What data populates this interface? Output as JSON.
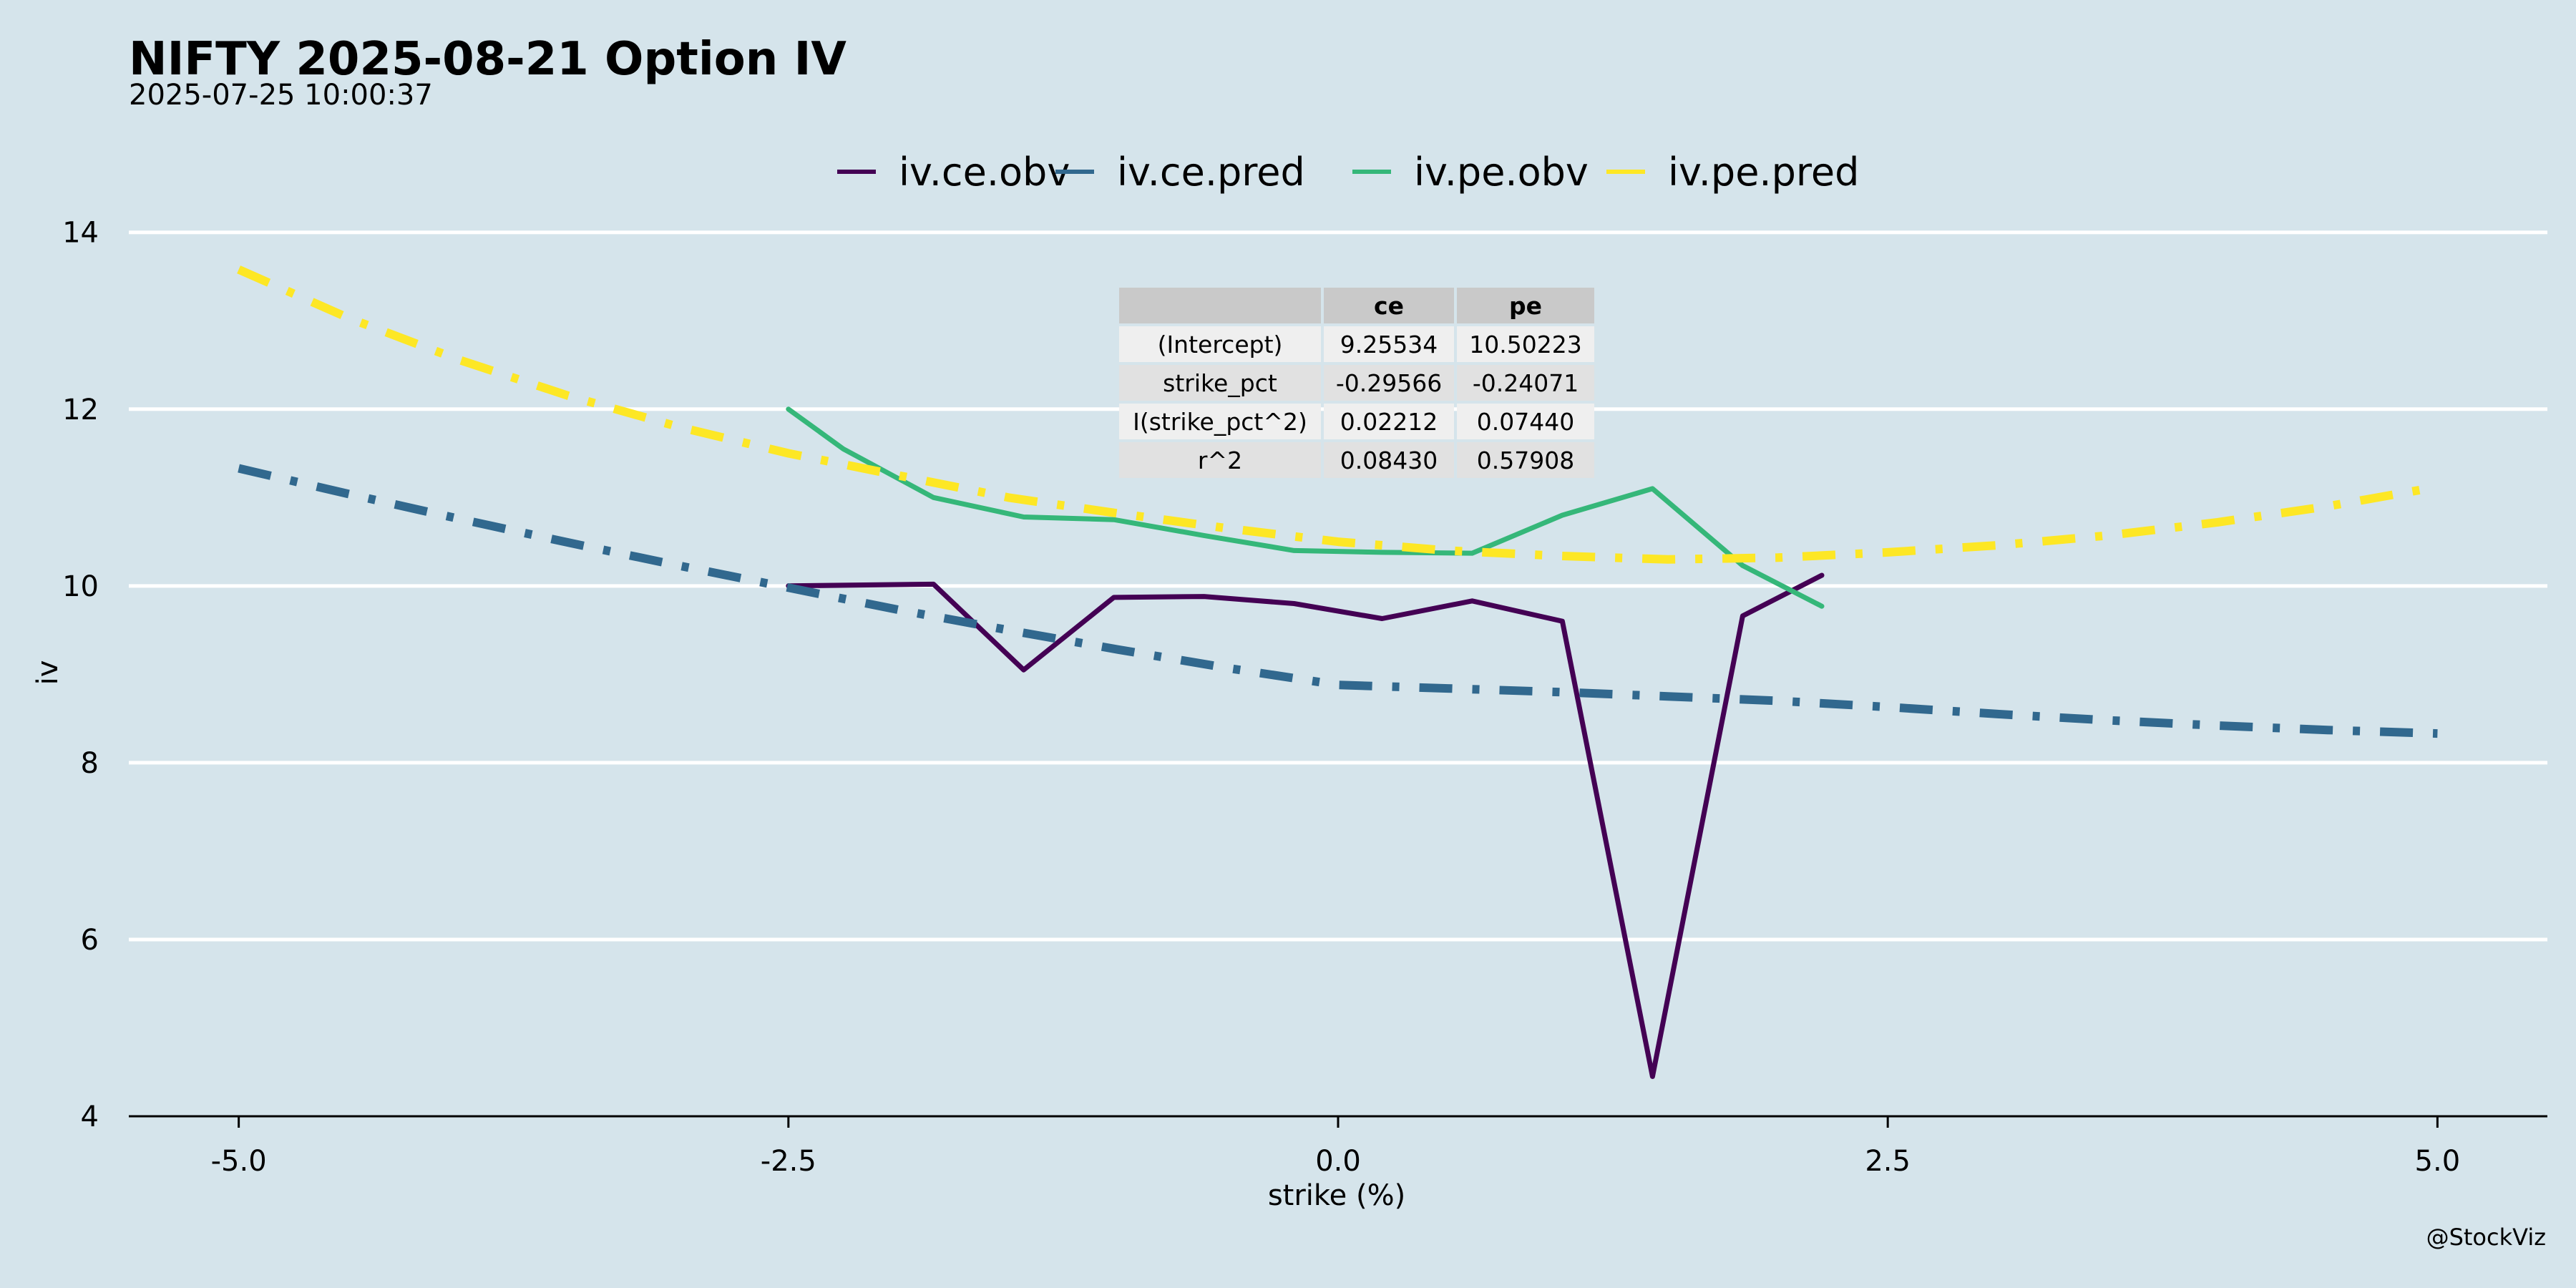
{
  "title": "NIFTY 2025-08-21 Option IV",
  "subtitle": "2025-07-25 10:00:37",
  "caption": "@StockViz",
  "chart_data": {
    "type": "line",
    "xlabel": "strike (%)",
    "ylabel": "iv",
    "xlim": [
      -5.5,
      5.5
    ],
    "ylim": [
      4,
      14.2
    ],
    "xticks": [
      -5.0,
      -2.5,
      0.0,
      2.5,
      5.0
    ],
    "xtick_labels": [
      "-5.0",
      "-2.5",
      "0.0",
      "2.5",
      "5.0"
    ],
    "yticks": [
      4,
      6,
      8,
      10,
      12,
      14
    ],
    "ytick_labels": [
      "4",
      "6",
      "8",
      "10",
      "12",
      "14"
    ],
    "grid": "horizontal",
    "legend_position": "top",
    "series": [
      {
        "name": "iv.ce.obv",
        "color": "#440154",
        "dash": "solid",
        "x": [
          -2.5,
          -1.84,
          -1.43,
          -1.02,
          -0.61,
          -0.2,
          0.2,
          0.61,
          1.02,
          1.43,
          1.84,
          2.2
        ],
        "y": [
          10.0,
          10.02,
          9.05,
          9.87,
          9.88,
          9.8,
          9.63,
          9.83,
          9.6,
          4.45,
          9.66,
          10.12
        ]
      },
      {
        "name": "iv.ce.pred",
        "color": "#31688e",
        "dash": "dashdot",
        "x": [
          -5.0,
          -4.5,
          -4.0,
          -3.5,
          -3.0,
          -2.5,
          -2.0,
          -1.5,
          -1.0,
          -0.5,
          0.0,
          0.5,
          1.0,
          1.5,
          2.0,
          2.5,
          3.0,
          3.5,
          4.0,
          4.5,
          5.0
        ],
        "y": [
          11.33,
          11.04,
          10.76,
          10.49,
          10.23,
          9.98,
          9.73,
          9.5,
          9.28,
          9.07,
          8.88,
          8.84,
          8.8,
          8.75,
          8.7,
          8.63,
          8.55,
          8.48,
          8.42,
          8.37,
          8.33
        ]
      },
      {
        "name": "iv.pe.obv",
        "color": "#35b779",
        "dash": "solid",
        "x": [
          -2.5,
          -2.25,
          -1.84,
          -1.43,
          -1.02,
          -0.61,
          -0.2,
          0.2,
          0.61,
          1.02,
          1.43,
          1.84,
          2.2
        ],
        "y": [
          12.0,
          11.55,
          11.0,
          10.78,
          10.75,
          10.57,
          10.4,
          10.38,
          10.37,
          10.8,
          11.1,
          10.23,
          9.77
        ]
      },
      {
        "name": "iv.pe.pred",
        "color": "#fde725",
        "dash": "dashdot",
        "x": [
          -5.0,
          -4.5,
          -4.0,
          -3.5,
          -3.0,
          -2.5,
          -2.0,
          -1.5,
          -1.0,
          -0.5,
          0.0,
          0.5,
          1.0,
          1.5,
          2.0,
          2.5,
          3.0,
          3.5,
          4.0,
          4.5,
          5.0
        ],
        "y": [
          13.58,
          13.03,
          12.56,
          12.15,
          11.8,
          11.5,
          11.25,
          11.0,
          10.82,
          10.65,
          10.5,
          10.4,
          10.34,
          10.3,
          10.32,
          10.38,
          10.46,
          10.57,
          10.72,
          10.9,
          11.12
        ]
      }
    ]
  },
  "coef_table": {
    "headers": [
      "",
      "ce",
      "pe"
    ],
    "rows": [
      [
        "(Intercept)",
        "9.25534",
        "10.50223"
      ],
      [
        "strike_pct",
        "-0.29566",
        "-0.24071"
      ],
      [
        "I(strike_pct^2)",
        "0.02212",
        "0.07440"
      ],
      [
        "r^2",
        "0.08430",
        "0.57908"
      ]
    ]
  }
}
